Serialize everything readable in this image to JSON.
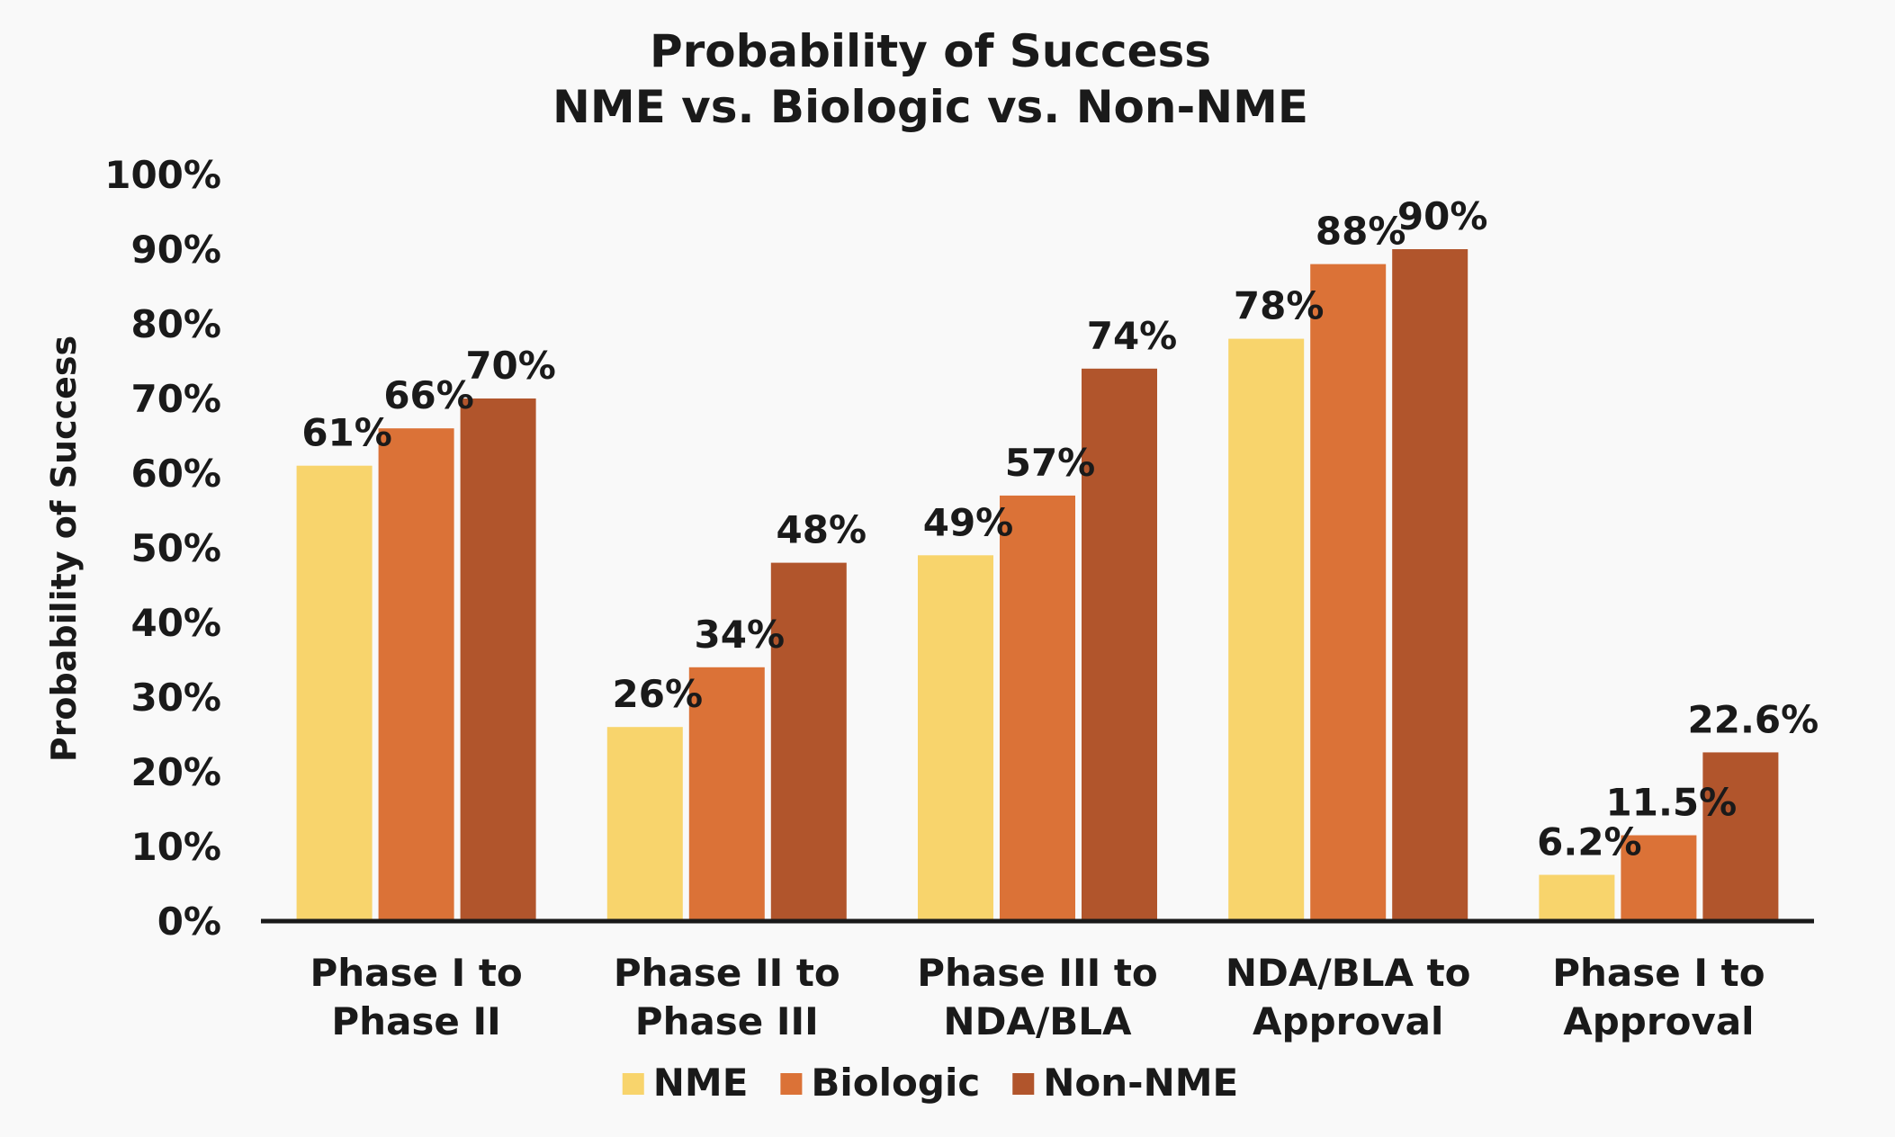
{
  "chart_data": {
    "type": "bar",
    "title": "Probability of Success",
    "subtitle": "NME vs. Biologic vs. Non-NME",
    "xlabel": "",
    "ylabel": "Probability of Success",
    "ylim": [
      0,
      100
    ],
    "y_ticks": [
      "0%",
      "10%",
      "20%",
      "30%",
      "40%",
      "50%",
      "60%",
      "70%",
      "80%",
      "90%",
      "100%"
    ],
    "grid": false,
    "legend_position": "bottom",
    "categories": [
      [
        "Phase I to",
        "Phase II"
      ],
      [
        "Phase II to",
        "Phase III"
      ],
      [
        "Phase III to",
        "NDA/BLA"
      ],
      [
        "NDA/BLA to",
        "Approval"
      ],
      [
        "Phase I to",
        "Approval"
      ]
    ],
    "series": [
      {
        "name": "NME",
        "color": "#f8d46c",
        "values": [
          61,
          26,
          49,
          78,
          6.2
        ],
        "labels": [
          "61%",
          "26%",
          "49%",
          "78%",
          "6.2%"
        ]
      },
      {
        "name": "Biologic",
        "color": "#db7237",
        "values": [
          66,
          34,
          57,
          88,
          11.5
        ],
        "labels": [
          "66%",
          "34%",
          "57%",
          "88%",
          "11.5%"
        ]
      },
      {
        "name": "Non-NME",
        "color": "#b1552c",
        "values": [
          70,
          48,
          74,
          90,
          22.6
        ],
        "labels": [
          "70%",
          "48%",
          "74%",
          "90%",
          "22.6%"
        ]
      }
    ]
  }
}
